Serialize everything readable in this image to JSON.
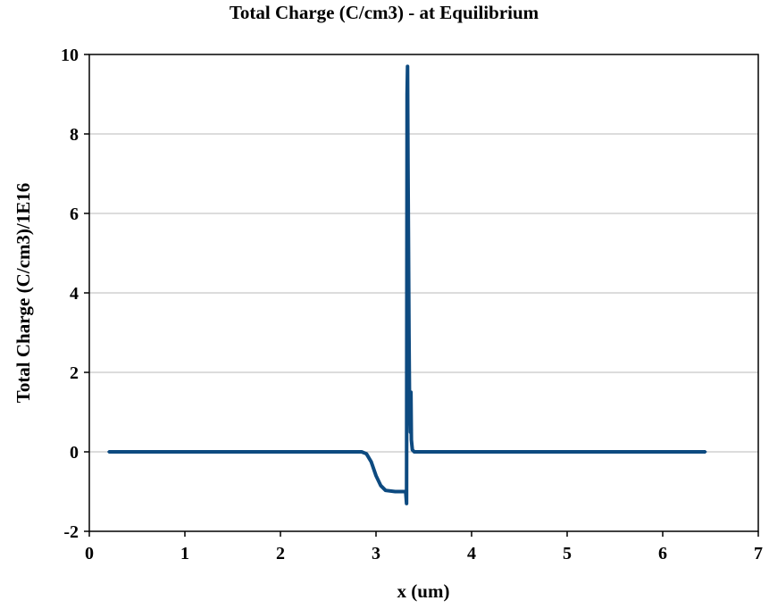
{
  "chart_data": {
    "type": "line",
    "title": "Total Charge (C/cm3) - at Equilibrium",
    "xlabel": "x (um)",
    "ylabel": "Total Charge (C/cm3)/1E16",
    "xlim": [
      0,
      7
    ],
    "ylim": [
      -2,
      10
    ],
    "xticks": [
      0,
      1,
      2,
      3,
      4,
      5,
      6,
      7
    ],
    "yticks": [
      -2,
      0,
      2,
      4,
      6,
      8,
      10
    ],
    "grid": "horizontal",
    "legend": "none",
    "series_color": "#0d4a80",
    "series": [
      {
        "x": [
          0.2,
          2.85,
          2.9,
          2.95,
          3.0,
          3.05,
          3.1,
          3.2,
          3.3,
          3.31,
          3.32,
          3.325,
          3.33,
          3.335,
          3.34,
          3.345,
          3.35,
          3.355,
          3.36,
          3.365,
          3.37,
          3.38,
          3.4,
          3.45,
          6.45
        ],
        "y": [
          0,
          0,
          -0.05,
          -0.25,
          -0.6,
          -0.85,
          -0.97,
          -1.0,
          -1.0,
          -1.0,
          -1.3,
          9.0,
          9.7,
          7.2,
          5.0,
          3.0,
          1.6,
          1.0,
          0.5,
          1.5,
          0.3,
          0.05,
          0,
          0,
          0
        ]
      }
    ]
  }
}
